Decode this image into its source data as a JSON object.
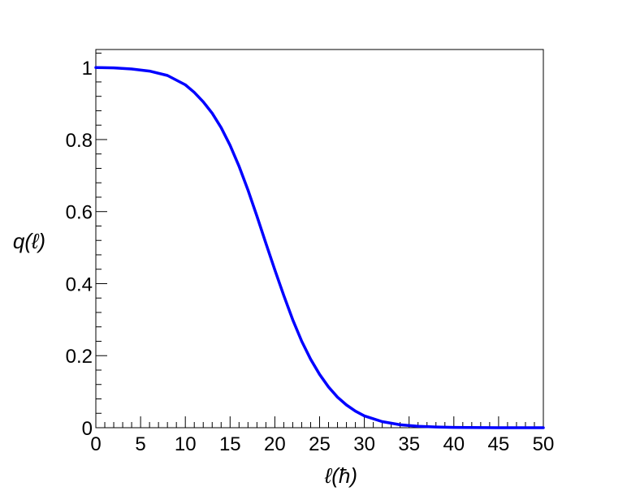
{
  "chart_data": {
    "type": "line",
    "xlabel": "ℓ(ħ)",
    "ylabel": "q(ℓ)",
    "xlim": [
      0,
      50
    ],
    "ylim": [
      0,
      1.05
    ],
    "x_ticks": [
      "0",
      "5",
      "10",
      "15",
      "20",
      "25",
      "30",
      "35",
      "40",
      "45",
      "50"
    ],
    "y_ticks": [
      "0",
      "0.2",
      "0.4",
      "0.6",
      "0.8",
      "1"
    ],
    "grid": false,
    "legend": "none",
    "series": [
      {
        "color": "#0000ff",
        "x": [
          0,
          2,
          4,
          6,
          8,
          10,
          11,
          12,
          13,
          14,
          15,
          16,
          17,
          18,
          19,
          20,
          21,
          22,
          23,
          24,
          25,
          26,
          27,
          28,
          29,
          30,
          32,
          34,
          36,
          38,
          40,
          45,
          50
        ],
        "y": [
          1.0,
          0.999,
          0.996,
          0.99,
          0.978,
          0.952,
          0.931,
          0.905,
          0.873,
          0.833,
          0.784,
          0.726,
          0.66,
          0.587,
          0.512,
          0.438,
          0.367,
          0.3,
          0.24,
          0.19,
          0.148,
          0.113,
          0.085,
          0.063,
          0.046,
          0.033,
          0.017,
          0.008,
          0.004,
          0.002,
          0.001,
          0.0,
          0.0
        ]
      }
    ]
  }
}
